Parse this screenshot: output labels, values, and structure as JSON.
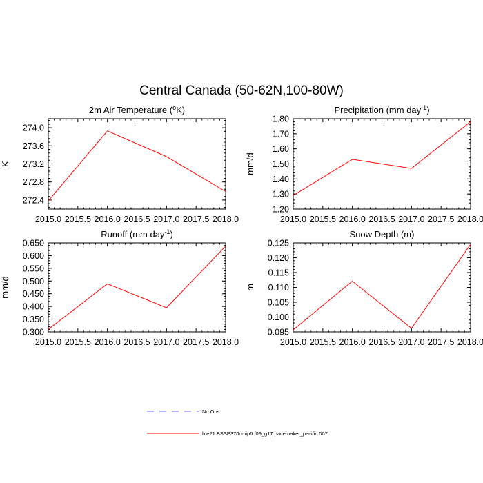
{
  "figure": {
    "title": "Central Canada (50-62N,100-80W)"
  },
  "chart_data": [
    {
      "type": "line",
      "title": "2m Air Temperature (",
      "title_sup": "o",
      "title_tail": "K)",
      "xlabel": "",
      "ylabel": "K",
      "xlim": [
        2015.0,
        2018.0
      ],
      "ylim": [
        272.2,
        274.2
      ],
      "xticks": [
        "2015.0",
        "2015.5",
        "2016.0",
        "2016.5",
        "2017.0",
        "2017.5",
        "2018.0"
      ],
      "yticks": [
        "272.4",
        "272.8",
        "273.2",
        "273.6",
        "274.0"
      ],
      "x": [
        2015.0,
        2016.0,
        2017.0,
        2018.0
      ],
      "series": [
        {
          "values": [
            272.38,
            273.93,
            273.36,
            272.59
          ],
          "color": "#ff0000"
        }
      ]
    },
    {
      "type": "line",
      "title": "Precipitation (mm day",
      "title_sup": "-1",
      "title_tail": ")",
      "xlabel": "",
      "ylabel": "mm/d",
      "xlim": [
        2015.0,
        2018.0
      ],
      "ylim": [
        1.2,
        1.8
      ],
      "xticks": [
        "2015.0",
        "2015.5",
        "2016.0",
        "2016.5",
        "2017.0",
        "2017.5",
        "2018.0"
      ],
      "yticks": [
        "1.20",
        "1.30",
        "1.40",
        "1.50",
        "1.60",
        "1.70",
        "1.80"
      ],
      "x": [
        2015.0,
        2016.0,
        2017.0,
        2018.0
      ],
      "series": [
        {
          "values": [
            1.29,
            1.53,
            1.47,
            1.78
          ],
          "color": "#ff0000"
        }
      ]
    },
    {
      "type": "line",
      "title": "Runoff (mm day",
      "title_sup": "-1",
      "title_tail": ")",
      "xlabel": "",
      "ylabel": "mm/d",
      "xlim": [
        2015.0,
        2018.0
      ],
      "ylim": [
        0.3,
        0.65
      ],
      "xticks": [
        "2015.0",
        "2015.5",
        "2016.0",
        "2016.5",
        "2017.0",
        "2017.5",
        "2018.0"
      ],
      "yticks": [
        "0.300",
        "0.350",
        "0.400",
        "0.450",
        "0.500",
        "0.550",
        "0.600",
        "0.650"
      ],
      "x": [
        2015.0,
        2016.0,
        2017.0,
        2018.0
      ],
      "series": [
        {
          "values": [
            0.31,
            0.489,
            0.395,
            0.637
          ],
          "color": "#ff0000"
        }
      ]
    },
    {
      "type": "line",
      "title": "Snow Depth (m)",
      "title_sup": "",
      "title_tail": "",
      "xlabel": "",
      "ylabel": "m",
      "xlim": [
        2015.0,
        2018.0
      ],
      "ylim": [
        0.095,
        0.125
      ],
      "xticks": [
        "2015.0",
        "2015.5",
        "2016.0",
        "2016.5",
        "2017.0",
        "2017.5",
        "2018.0"
      ],
      "yticks": [
        "0.095",
        "0.100",
        "0.105",
        "0.110",
        "0.115",
        "0.120",
        "0.125"
      ],
      "x": [
        2015.0,
        2016.0,
        2017.0,
        2018.0
      ],
      "series": [
        {
          "values": [
            0.0957,
            0.1121,
            0.0962,
            0.1245
          ],
          "color": "#ff0000"
        }
      ]
    }
  ],
  "legend": {
    "placement": "bottom",
    "entries": [
      {
        "label": "No Obs",
        "color": "#6666ff",
        "style": "dashed"
      },
      {
        "label": "b.e21.BSSP370cmip6.f09_g17.pacemaker_pacific.007",
        "color": "#ff0000",
        "style": "solid"
      }
    ]
  }
}
